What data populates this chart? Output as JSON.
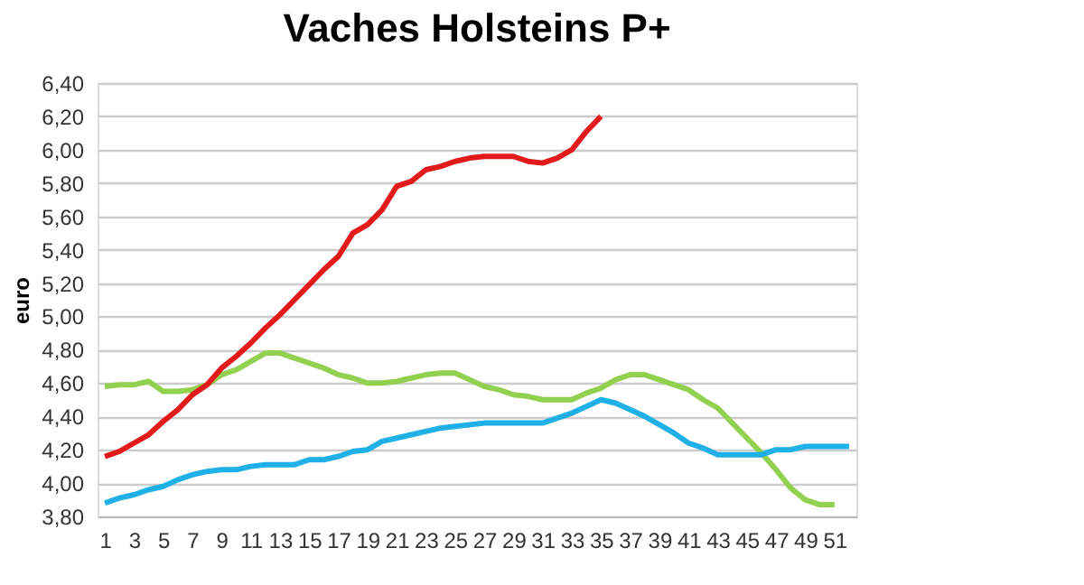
{
  "chart_data": {
    "type": "line",
    "title": "Vaches Holsteins P+",
    "ylabel": "euro",
    "x": [
      1,
      2,
      3,
      4,
      5,
      6,
      7,
      8,
      9,
      10,
      11,
      12,
      13,
      14,
      15,
      16,
      17,
      18,
      19,
      20,
      21,
      22,
      23,
      24,
      25,
      26,
      27,
      28,
      29,
      30,
      31,
      32,
      33,
      34,
      35,
      36,
      37,
      38,
      39,
      40,
      41,
      42,
      43,
      44,
      45,
      46,
      47,
      48,
      49,
      50,
      51,
      52
    ],
    "series": [
      {
        "color": "#92d050",
        "values": [
          4.58,
          4.59,
          4.59,
          4.61,
          4.55,
          4.55,
          4.56,
          4.59,
          4.65,
          4.68,
          4.73,
          4.78,
          4.78,
          4.75,
          4.72,
          4.69,
          4.65,
          4.63,
          4.6,
          4.6,
          4.61,
          4.63,
          4.65,
          4.66,
          4.66,
          4.62,
          4.58,
          4.56,
          4.53,
          4.52,
          4.5,
          4.5,
          4.5,
          4.54,
          4.57,
          4.62,
          4.65,
          4.65,
          4.62,
          4.59,
          4.56,
          4.5,
          4.45,
          4.36,
          4.27,
          4.18,
          4.08,
          3.97,
          3.9,
          3.87,
          3.87,
          null
        ]
      },
      {
        "color": "#1fb0e8",
        "values": [
          3.88,
          3.91,
          3.93,
          3.96,
          3.98,
          4.02,
          4.05,
          4.07,
          4.08,
          4.08,
          4.1,
          4.11,
          4.11,
          4.11,
          4.14,
          4.14,
          4.16,
          4.19,
          4.2,
          4.25,
          4.27,
          4.29,
          4.31,
          4.33,
          4.34,
          4.35,
          4.36,
          4.36,
          4.36,
          4.36,
          4.36,
          4.39,
          4.42,
          4.46,
          4.5,
          4.48,
          4.44,
          4.4,
          4.35,
          4.3,
          4.24,
          4.21,
          4.17,
          4.17,
          4.17,
          4.17,
          4.2,
          4.2,
          4.22,
          4.22,
          4.22,
          4.22
        ]
      },
      {
        "color": "#e31a1c",
        "values": [
          4.16,
          4.19,
          4.24,
          4.29,
          4.37,
          4.44,
          4.53,
          4.59,
          4.69,
          4.76,
          4.84,
          4.93,
          5.01,
          5.1,
          5.19,
          5.28,
          5.36,
          5.5,
          5.55,
          5.64,
          5.78,
          5.81,
          5.88,
          5.9,
          5.93,
          5.95,
          5.96,
          5.96,
          5.96,
          5.93,
          5.92,
          5.95,
          6.0,
          6.11,
          6.2,
          null,
          null,
          null,
          null,
          null,
          null,
          null,
          null,
          null,
          null,
          null,
          null,
          null,
          null,
          null,
          null,
          null
        ]
      }
    ],
    "xlim": [
      0.5,
      52.5
    ],
    "xticks": [
      1,
      3,
      5,
      7,
      9,
      11,
      13,
      15,
      17,
      19,
      21,
      23,
      25,
      27,
      29,
      31,
      33,
      35,
      37,
      39,
      41,
      43,
      45,
      47,
      49,
      51
    ],
    "ylim": [
      3.8,
      6.4
    ],
    "yticks": [
      {
        "value": 3.8,
        "label": "3,80"
      },
      {
        "value": 4.0,
        "label": "4,00"
      },
      {
        "value": 4.2,
        "label": "4,20"
      },
      {
        "value": 4.4,
        "label": "4,40"
      },
      {
        "value": 4.6,
        "label": "4,60"
      },
      {
        "value": 4.8,
        "label": "4,80"
      },
      {
        "value": 5.0,
        "label": "5,00"
      },
      {
        "value": 5.2,
        "label": "5,20"
      },
      {
        "value": 5.4,
        "label": "5,40"
      },
      {
        "value": 5.6,
        "label": "5,60"
      },
      {
        "value": 5.8,
        "label": "5,80"
      },
      {
        "value": 6.0,
        "label": "6,00"
      },
      {
        "value": 6.2,
        "label": "6,20"
      },
      {
        "value": 6.4,
        "label": "6,40"
      }
    ],
    "grid": "y",
    "marker": "none",
    "line_style": "solid"
  }
}
